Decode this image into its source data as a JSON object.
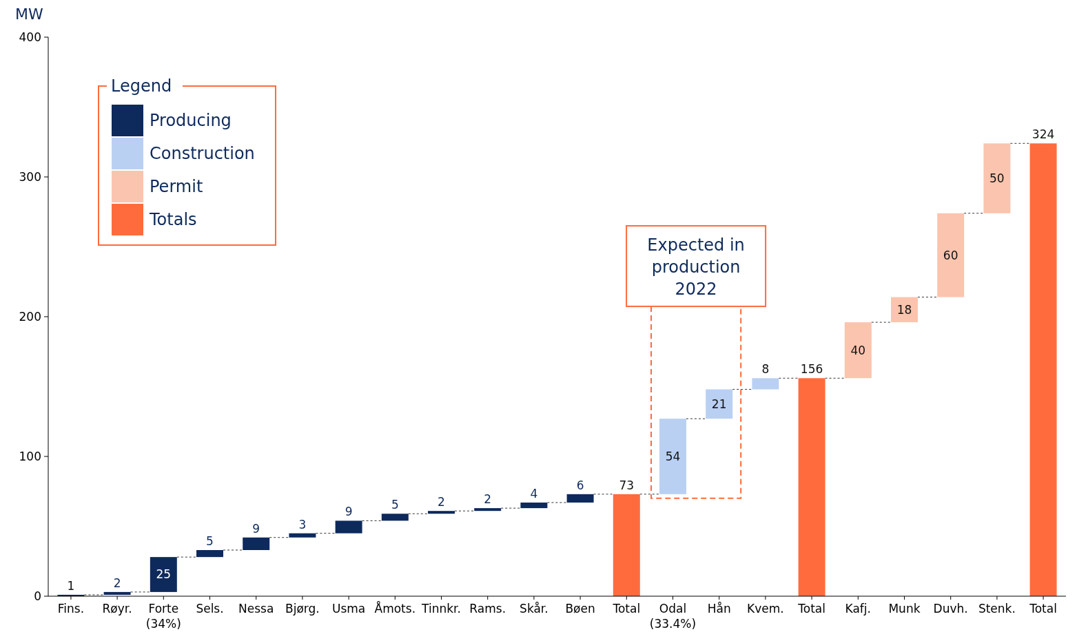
{
  "chart_data": {
    "type": "bar",
    "ylabel": "MW",
    "legend_title": "Legend",
    "legend": "top left",
    "data_labels": true,
    "categories": [
      "Fins.",
      "Røyr.",
      "Forte (34%)",
      "Sels.",
      "Nessa",
      "Bjørg.",
      "Usma",
      "Åmots.",
      "Tinnkr.",
      "Rams.",
      "Skår.",
      "Bøen",
      "Total",
      "Odal (33.4%)",
      "Hån",
      "Kvem.",
      "Total",
      "Kafj.",
      "Munk",
      "Duvh.",
      "Stenk.",
      "Total"
    ],
    "series": [
      {
        "name": "Producing",
        "color": "#0e2a5c",
        "values": [
          1,
          2,
          25,
          5,
          9,
          3,
          9,
          5,
          2,
          2,
          4,
          6,
          null,
          null,
          null,
          null,
          null,
          null,
          null,
          null,
          null,
          null
        ],
        "base": [
          0,
          1,
          3,
          28,
          33,
          42,
          45,
          54,
          59,
          61,
          63,
          67,
          null,
          null,
          null,
          null,
          null,
          null,
          null,
          null,
          null,
          null
        ]
      },
      {
        "name": "Construction",
        "color": "#b9d0f3",
        "values": [
          null,
          null,
          null,
          null,
          null,
          null,
          null,
          null,
          null,
          null,
          null,
          null,
          null,
          54,
          21,
          8,
          null,
          null,
          null,
          null,
          null,
          null
        ],
        "base": [
          null,
          null,
          null,
          null,
          null,
          null,
          null,
          null,
          null,
          null,
          null,
          null,
          null,
          73,
          127,
          148,
          null,
          null,
          null,
          null,
          null,
          null
        ]
      },
      {
        "name": "Permit",
        "color": "#fbc4ae",
        "values": [
          null,
          null,
          null,
          null,
          null,
          null,
          null,
          null,
          null,
          null,
          null,
          null,
          null,
          null,
          null,
          null,
          null,
          40,
          18,
          60,
          50,
          null
        ],
        "base": [
          null,
          null,
          null,
          null,
          null,
          null,
          null,
          null,
          null,
          null,
          null,
          null,
          null,
          null,
          null,
          null,
          null,
          156,
          196,
          214,
          274,
          null
        ]
      },
      {
        "name": "Totals",
        "color": "#ff6b3d",
        "values": [
          null,
          null,
          null,
          null,
          null,
          null,
          null,
          null,
          null,
          null,
          null,
          null,
          73,
          null,
          null,
          null,
          156,
          null,
          null,
          null,
          null,
          324
        ],
        "base": [
          null,
          null,
          null,
          null,
          null,
          null,
          null,
          null,
          null,
          null,
          null,
          null,
          0,
          null,
          null,
          null,
          0,
          null,
          null,
          null,
          null,
          0
        ]
      }
    ],
    "ylim": [
      0,
      400
    ],
    "yticks": [
      0,
      100,
      200,
      300,
      400
    ],
    "grid": false,
    "annotations": [
      "Expected in production 2022"
    ]
  }
}
